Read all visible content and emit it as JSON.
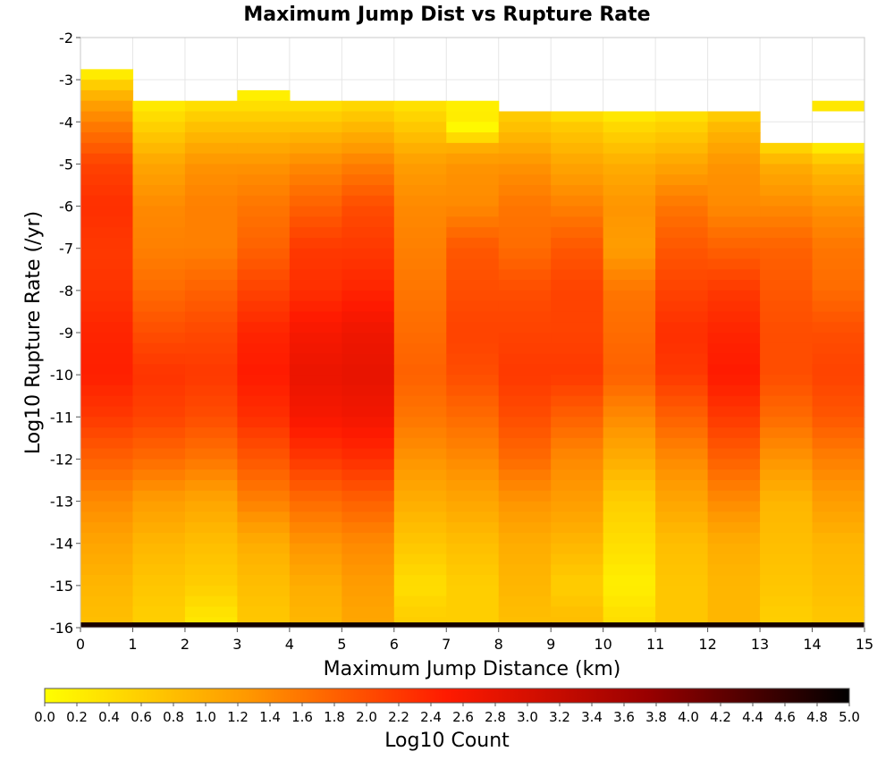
{
  "chart_data": {
    "type": "heatmap",
    "title": "Maximum Jump Dist vs Rupture Rate",
    "xlabel": "Maximum Jump Distance (km)",
    "ylabel": "Log10 Rupture Rate (/yr)",
    "xlim": [
      0,
      15
    ],
    "ylim": [
      -16,
      -2
    ],
    "x_ticks": [
      "0",
      "1",
      "2",
      "3",
      "4",
      "5",
      "6",
      "7",
      "8",
      "9",
      "10",
      "11",
      "12",
      "13",
      "14",
      "15"
    ],
    "y_ticks": [
      "-2",
      "-3",
      "-4",
      "-5",
      "-6",
      "-7",
      "-8",
      "-9",
      "-10",
      "-11",
      "-12",
      "-13",
      "-14",
      "-15",
      "-16"
    ],
    "x_bin_width": 1,
    "y_bin_height": 0.25,
    "colorbar": {
      "label": "Log10 Count",
      "range": [
        0,
        5
      ],
      "ticks": [
        "0.0",
        "0.2",
        "0.4",
        "0.6",
        "0.8",
        "1.0",
        "1.2",
        "1.4",
        "1.6",
        "1.8",
        "2.0",
        "2.2",
        "2.4",
        "2.6",
        "2.8",
        "3.0",
        "3.2",
        "3.4",
        "3.6",
        "3.8",
        "4.0",
        "4.2",
        "4.4",
        "4.6",
        "4.8",
        "5.0"
      ],
      "colors": [
        "#ffff00",
        "#ff9900",
        "#ff1a00",
        "#990000",
        "#000000"
      ]
    },
    "columns": [
      {
        "x": 0,
        "top": -2.75,
        "profile": [
          [
            -2.75,
            0.05
          ],
          [
            -3.0,
            0.45
          ],
          [
            -3.5,
            1.1
          ],
          [
            -4.0,
            1.5
          ],
          [
            -5.0,
            2.1
          ],
          [
            -6.0,
            2.3
          ],
          [
            -7.0,
            2.2
          ],
          [
            -8.0,
            2.25
          ],
          [
            -9.0,
            2.4
          ],
          [
            -10.0,
            2.45
          ],
          [
            -11.0,
            2.2
          ],
          [
            -12.0,
            1.8
          ],
          [
            -13.0,
            1.4
          ],
          [
            -14.0,
            1.1
          ],
          [
            -15.0,
            0.9
          ],
          [
            -15.75,
            0.8
          ]
        ]
      },
      {
        "x": 1,
        "top": -3.5,
        "profile": [
          [
            -3.5,
            0.2
          ],
          [
            -4.0,
            0.5
          ],
          [
            -5.0,
            1.1
          ],
          [
            -6.0,
            1.4
          ],
          [
            -7.0,
            1.5
          ],
          [
            -8.0,
            1.7
          ],
          [
            -9.0,
            2.0
          ],
          [
            -10.0,
            2.25
          ],
          [
            -11.0,
            2.1
          ],
          [
            -12.0,
            1.7
          ],
          [
            -13.0,
            1.2
          ],
          [
            -14.0,
            0.9
          ],
          [
            -15.0,
            0.7
          ],
          [
            -15.75,
            0.6
          ]
        ]
      },
      {
        "x": 2,
        "top": -3.5,
        "profile": [
          [
            -3.5,
            0.3
          ],
          [
            -4.0,
            0.7
          ],
          [
            -5.0,
            1.3
          ],
          [
            -6.0,
            1.5
          ],
          [
            -7.0,
            1.5
          ],
          [
            -8.0,
            1.8
          ],
          [
            -9.0,
            2.05
          ],
          [
            -10.0,
            2.2
          ],
          [
            -11.0,
            2.0
          ],
          [
            -12.0,
            1.6
          ],
          [
            -13.0,
            1.1
          ],
          [
            -14.0,
            0.8
          ],
          [
            -15.0,
            0.6
          ],
          [
            -15.75,
            0.3
          ]
        ]
      },
      {
        "x": 3,
        "top": -3.25,
        "profile": [
          [
            -3.25,
            0.1
          ],
          [
            -4.0,
            0.7
          ],
          [
            -5.0,
            1.3
          ],
          [
            -6.0,
            1.6
          ],
          [
            -7.0,
            1.8
          ],
          [
            -8.0,
            2.1
          ],
          [
            -9.0,
            2.4
          ],
          [
            -10.0,
            2.5
          ],
          [
            -11.0,
            2.3
          ],
          [
            -12.0,
            1.9
          ],
          [
            -13.0,
            1.5
          ],
          [
            -14.0,
            1.0
          ],
          [
            -15.0,
            0.8
          ],
          [
            -15.75,
            0.7
          ]
        ]
      },
      {
        "x": 4,
        "top": -3.5,
        "profile": [
          [
            -3.5,
            0.3
          ],
          [
            -4.0,
            0.7
          ],
          [
            -5.0,
            1.4
          ],
          [
            -6.0,
            1.8
          ],
          [
            -7.0,
            2.2
          ],
          [
            -8.0,
            2.3
          ],
          [
            -9.0,
            2.6
          ],
          [
            -10.0,
            2.75
          ],
          [
            -11.0,
            2.6
          ],
          [
            -12.0,
            2.2
          ],
          [
            -13.0,
            1.7
          ],
          [
            -14.0,
            1.3
          ],
          [
            -15.0,
            1.0
          ],
          [
            -15.75,
            0.9
          ]
        ]
      },
      {
        "x": 5,
        "top": -3.5,
        "profile": [
          [
            -3.5,
            0.4
          ],
          [
            -4.0,
            0.8
          ],
          [
            -5.0,
            1.5
          ],
          [
            -6.0,
            2.0
          ],
          [
            -7.0,
            2.2
          ],
          [
            -8.0,
            2.4
          ],
          [
            -9.0,
            2.7
          ],
          [
            -10.0,
            2.8
          ],
          [
            -11.0,
            2.65
          ],
          [
            -12.0,
            2.3
          ],
          [
            -13.0,
            1.8
          ],
          [
            -14.0,
            1.4
          ],
          [
            -15.0,
            1.2
          ],
          [
            -15.75,
            1.1
          ]
        ]
      },
      {
        "x": 6,
        "top": -3.5,
        "profile": [
          [
            -3.5,
            0.3
          ],
          [
            -4.0,
            0.6
          ],
          [
            -5.0,
            1.2
          ],
          [
            -6.0,
            1.4
          ],
          [
            -7.0,
            1.5
          ],
          [
            -8.0,
            1.6
          ],
          [
            -9.0,
            1.7
          ],
          [
            -10.0,
            1.8
          ],
          [
            -11.0,
            1.6
          ],
          [
            -12.0,
            1.3
          ],
          [
            -13.0,
            1.0
          ],
          [
            -14.0,
            0.7
          ],
          [
            -15.0,
            0.4
          ],
          [
            -15.75,
            0.6
          ]
        ]
      },
      {
        "x": 7,
        "top": -3.5,
        "profile": [
          [
            -3.5,
            0.1
          ],
          [
            -3.75,
            0.3
          ],
          [
            -4.25,
            0.0
          ],
          [
            -4.5,
            0.9
          ],
          [
            -5.0,
            1.3
          ],
          [
            -6.0,
            1.4
          ],
          [
            -7.0,
            1.9
          ],
          [
            -8.0,
            2.0
          ],
          [
            -9.0,
            2.1
          ],
          [
            -10.0,
            2.0
          ],
          [
            -11.0,
            1.7
          ],
          [
            -12.0,
            1.4
          ],
          [
            -13.0,
            1.1
          ],
          [
            -14.0,
            0.8
          ],
          [
            -15.0,
            0.6
          ],
          [
            -15.75,
            0.6
          ]
        ]
      },
      {
        "x": 8,
        "top": -3.75,
        "profile": [
          [
            -3.75,
            0.6
          ],
          [
            -4.0,
            0.7
          ],
          [
            -5.0,
            1.3
          ],
          [
            -6.0,
            1.6
          ],
          [
            -7.0,
            1.7
          ],
          [
            -8.0,
            2.0
          ],
          [
            -9.0,
            2.1
          ],
          [
            -10.0,
            2.2
          ],
          [
            -11.0,
            2.0
          ],
          [
            -12.0,
            1.7
          ],
          [
            -13.0,
            1.3
          ],
          [
            -14.0,
            1.0
          ],
          [
            -15.0,
            0.9
          ],
          [
            -15.75,
            0.8
          ]
        ]
      },
      {
        "x": 9,
        "top": -3.75,
        "profile": [
          [
            -3.75,
            0.3
          ],
          [
            -4.0,
            0.6
          ],
          [
            -5.0,
            1.1
          ],
          [
            -6.0,
            1.5
          ],
          [
            -7.0,
            1.9
          ],
          [
            -8.0,
            2.1
          ],
          [
            -9.0,
            2.1
          ],
          [
            -10.0,
            2.2
          ],
          [
            -11.0,
            1.8
          ],
          [
            -12.0,
            1.4
          ],
          [
            -13.0,
            1.2
          ],
          [
            -14.0,
            0.9
          ],
          [
            -15.0,
            0.6
          ],
          [
            -15.75,
            0.8
          ]
        ]
      },
      {
        "x": 10,
        "top": -3.75,
        "profile": [
          [
            -3.75,
            0.2
          ],
          [
            -4.0,
            0.4
          ],
          [
            -5.0,
            1.0
          ],
          [
            -6.0,
            1.3
          ],
          [
            -7.0,
            1.2
          ],
          [
            -8.0,
            1.6
          ],
          [
            -9.0,
            1.7
          ],
          [
            -10.0,
            1.8
          ],
          [
            -11.0,
            1.4
          ],
          [
            -12.0,
            1.0
          ],
          [
            -13.0,
            0.6
          ],
          [
            -14.0,
            0.4
          ],
          [
            -15.0,
            0.2
          ],
          [
            -15.75,
            0.4
          ]
        ]
      },
      {
        "x": 11,
        "top": -3.75,
        "profile": [
          [
            -3.75,
            0.3
          ],
          [
            -4.0,
            0.5
          ],
          [
            -5.0,
            1.1
          ],
          [
            -6.0,
            1.6
          ],
          [
            -7.0,
            1.9
          ],
          [
            -8.0,
            2.1
          ],
          [
            -9.0,
            2.3
          ],
          [
            -10.0,
            2.2
          ],
          [
            -11.0,
            1.8
          ],
          [
            -12.0,
            1.4
          ],
          [
            -13.0,
            1.1
          ],
          [
            -14.0,
            0.8
          ],
          [
            -15.0,
            0.7
          ],
          [
            -15.75,
            0.7
          ]
        ]
      },
      {
        "x": 12,
        "top": -3.75,
        "profile": [
          [
            -3.75,
            0.5
          ],
          [
            -4.0,
            0.8
          ],
          [
            -5.0,
            1.3
          ],
          [
            -6.0,
            1.4
          ],
          [
            -7.0,
            1.8
          ],
          [
            -8.0,
            2.2
          ],
          [
            -9.0,
            2.4
          ],
          [
            -10.0,
            2.5
          ],
          [
            -11.0,
            2.2
          ],
          [
            -12.0,
            1.8
          ],
          [
            -13.0,
            1.4
          ],
          [
            -14.0,
            1.0
          ],
          [
            -15.0,
            0.9
          ],
          [
            -15.75,
            0.9
          ]
        ]
      },
      {
        "x": 13,
        "top": -4.5,
        "profile": [
          [
            -4.5,
            0.4
          ],
          [
            -5.0,
            1.0
          ],
          [
            -6.0,
            1.4
          ],
          [
            -7.0,
            1.8
          ],
          [
            -8.0,
            1.9
          ],
          [
            -9.0,
            2.0
          ],
          [
            -10.0,
            2.0
          ],
          [
            -11.0,
            1.7
          ],
          [
            -12.0,
            1.3
          ],
          [
            -13.0,
            0.9
          ],
          [
            -14.0,
            0.8
          ],
          [
            -15.0,
            0.7
          ],
          [
            -15.75,
            0.6
          ]
        ]
      },
      {
        "x": 14,
        "top": -4.5,
        "profile": [
          [
            -4.5,
            0.1
          ],
          [
            -5.0,
            0.8
          ],
          [
            -6.0,
            1.3
          ],
          [
            -7.0,
            1.6
          ],
          [
            -8.0,
            1.7
          ],
          [
            -9.0,
            2.0
          ],
          [
            -10.0,
            2.1
          ],
          [
            -11.0,
            1.9
          ],
          [
            -12.0,
            1.5
          ],
          [
            -13.0,
            1.2
          ],
          [
            -14.0,
            0.9
          ],
          [
            -15.0,
            0.8
          ],
          [
            -15.75,
            0.7
          ]
        ]
      }
    ],
    "extra_cells": [
      {
        "x": 14,
        "y_top": -3.5,
        "y_bottom": -3.75,
        "value": 0.3
      }
    ],
    "bottom_row": {
      "y_top": -15.875,
      "y_bottom": -16.0,
      "values": [
        4.8,
        4.85,
        4.85,
        4.85,
        4.9,
        4.9,
        4.85,
        4.85,
        4.85,
        4.85,
        4.85,
        4.85,
        4.85,
        4.85,
        4.85
      ]
    }
  }
}
